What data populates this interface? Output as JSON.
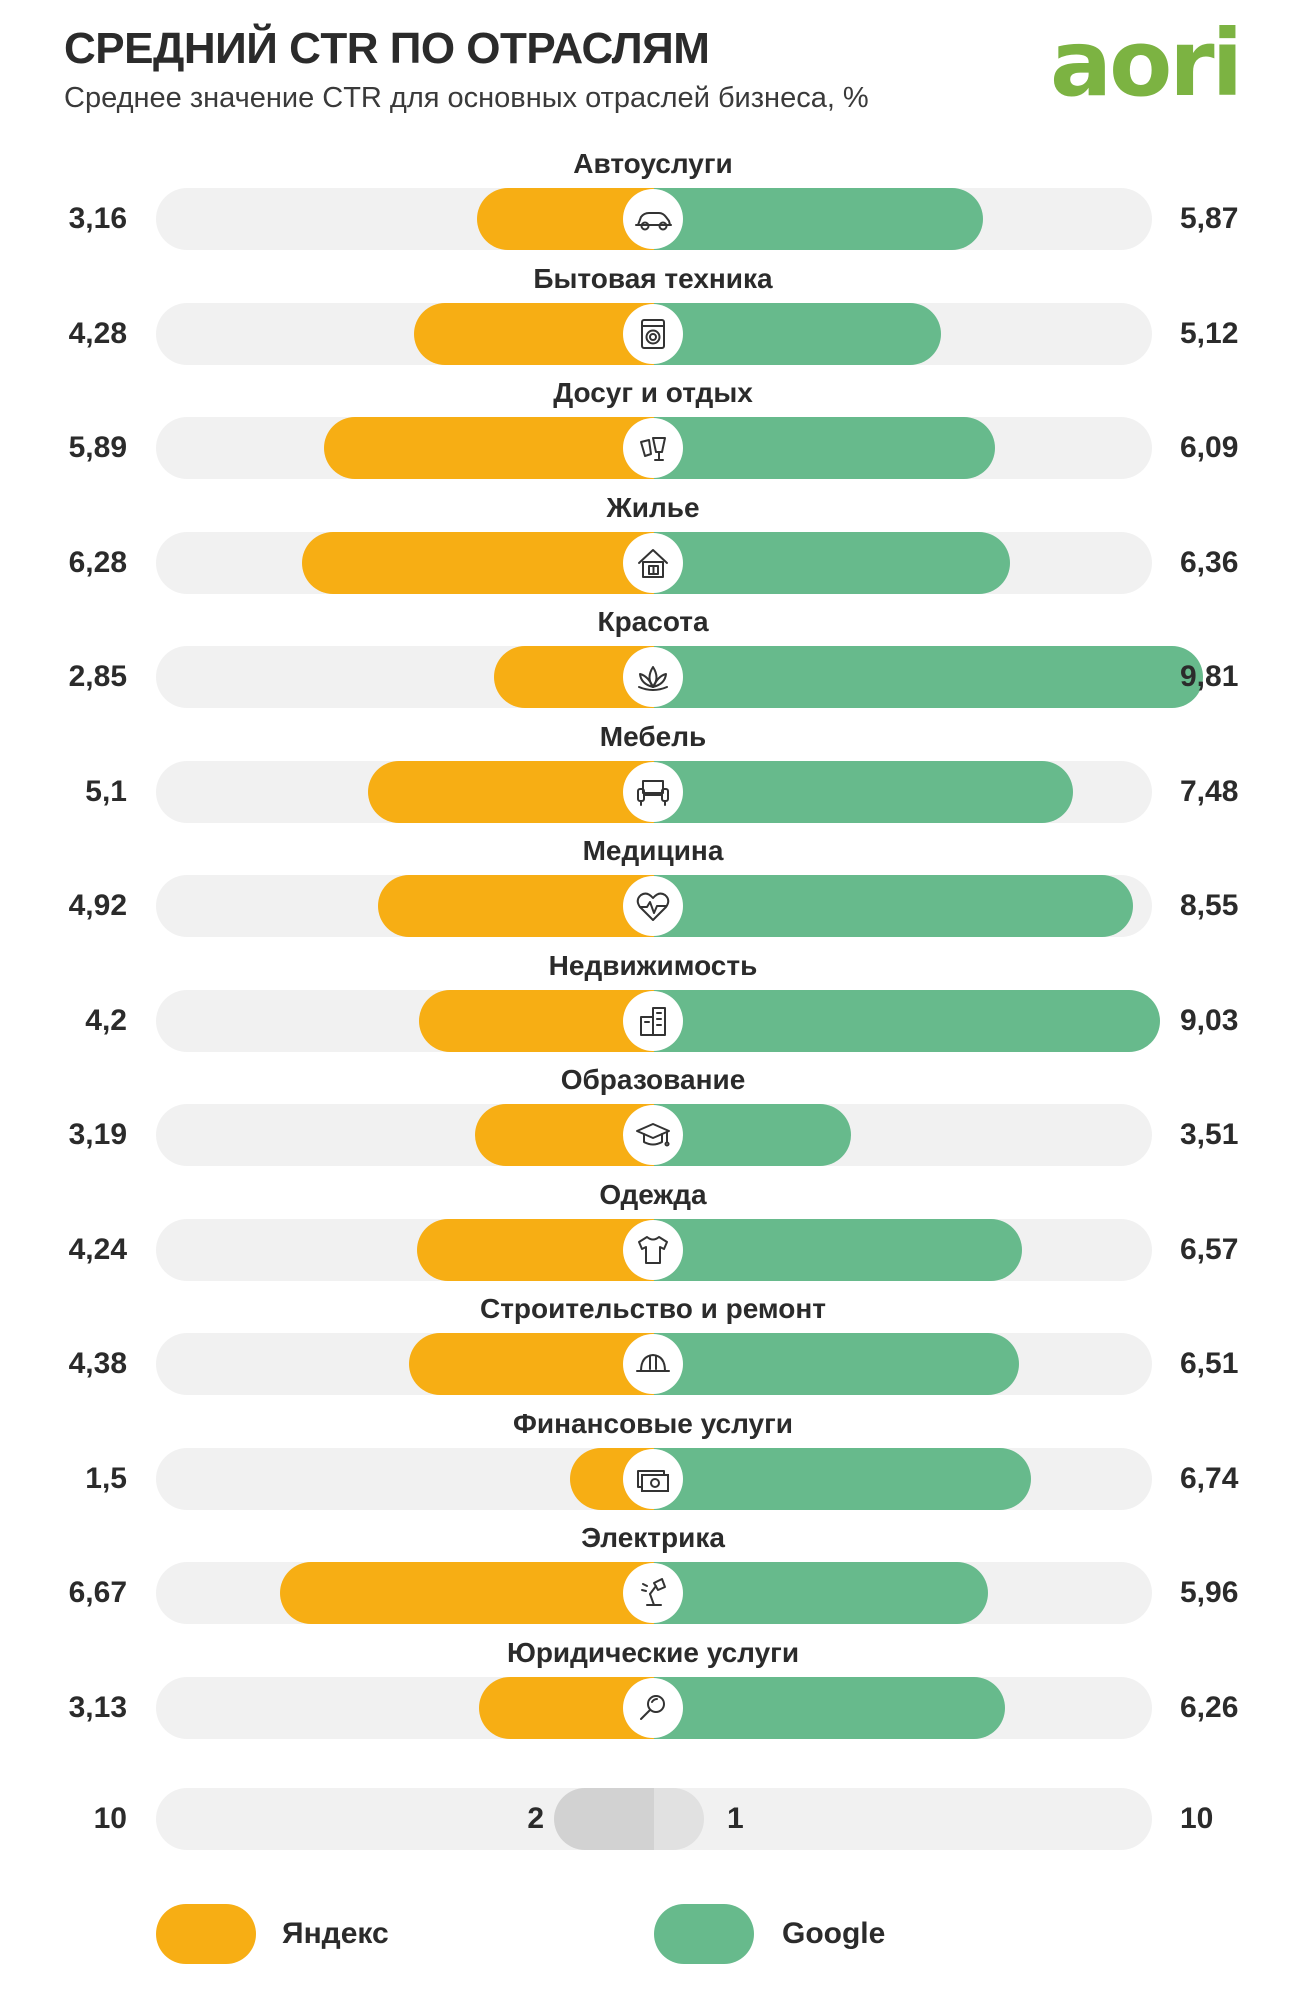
{
  "header": {
    "title": "СРЕДНИЙ CTR ПО ОТРАСЛЯМ",
    "subtitle": "Среднее значение CTR для основных отраслей бизнеса, %",
    "logo_text": "aori"
  },
  "colors": {
    "yandex": "#f7ae14",
    "google": "#67ba8c",
    "track": "#f1f1f1",
    "logo": "#7cb342"
  },
  "chart_data": {
    "type": "bar",
    "orientation": "horizontal-diverging",
    "title": "СРЕДНИЙ CTR ПО ОТРАСЛЯМ",
    "subtitle": "Среднее значение CTR для основных отраслей бизнеса, %",
    "categories": [
      "Автоуслуги",
      "Бытовая техника",
      "Досуг и отдых",
      "Жилье",
      "Красота",
      "Мебель",
      "Медицина",
      "Недвижимость",
      "Образование",
      "Одежда",
      "Строительство и ремонт",
      "Финансовые услуги",
      "Электрика",
      "Юридические услуги"
    ],
    "icons": [
      "car-icon",
      "washing-machine-icon",
      "drinks-icon",
      "house-icon",
      "lotus-icon",
      "sofa-icon",
      "heart-pulse-icon",
      "buildings-icon",
      "graduation-cap-icon",
      "tshirt-icon",
      "hard-hat-icon",
      "money-icon",
      "desk-lamp-icon",
      "magnifier-icon"
    ],
    "series": [
      {
        "name": "Яндекс",
        "side": "left",
        "values": [
          3.16,
          4.28,
          5.89,
          6.28,
          2.85,
          5.1,
          4.92,
          4.2,
          3.19,
          4.24,
          4.38,
          1.5,
          6.67,
          3.13
        ],
        "labels": [
          "3,16",
          "4,28",
          "5,89",
          "6,28",
          "2,85",
          "5,1",
          "4,92",
          "4,2",
          "3,19",
          "4,24",
          "4,38",
          "1,5",
          "6,67",
          "3,13"
        ]
      },
      {
        "name": "Google",
        "side": "right",
        "values": [
          5.87,
          5.12,
          6.09,
          6.36,
          9.81,
          7.48,
          8.55,
          9.03,
          3.51,
          6.57,
          6.51,
          6.74,
          5.96,
          6.26
        ],
        "labels": [
          "5,87",
          "5,12",
          "6,09",
          "6,36",
          "9,81",
          "7,48",
          "8,55",
          "9,03",
          "3,51",
          "6,57",
          "6,51",
          "6,74",
          "5,96",
          "6,26"
        ]
      }
    ],
    "xlim": [
      -10,
      10
    ],
    "scale": {
      "left_max": "10",
      "left_tick": "2",
      "right_tick": "1",
      "right_max": "10"
    },
    "legend": {
      "position": "bottom",
      "items": [
        {
          "label": "Яндекс"
        },
        {
          "label": "Google"
        }
      ]
    }
  }
}
